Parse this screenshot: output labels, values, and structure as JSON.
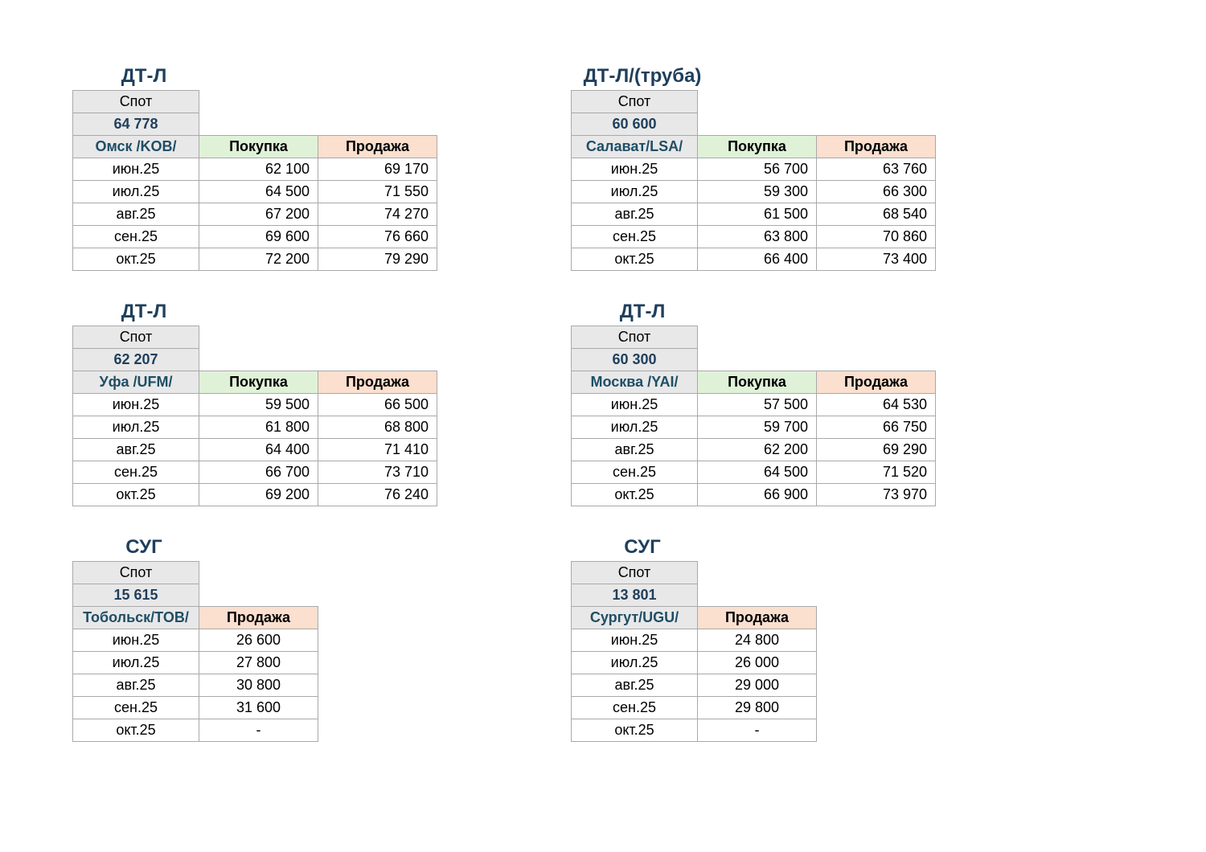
{
  "blocks": [
    {
      "title": "ДТ-Л",
      "spot_label": "Спот",
      "spot_value": "64 778",
      "location": "Омск /KOB/",
      "buy_header": "Покупка",
      "sell_header": "Продажа",
      "rows": [
        {
          "month": "июн.25",
          "buy": "62 100",
          "sell": "69 170"
        },
        {
          "month": "июл.25",
          "buy": "64 500",
          "sell": "71 550"
        },
        {
          "month": "авг.25",
          "buy": "67 200",
          "sell": "74 270"
        },
        {
          "month": "сен.25",
          "buy": "69 600",
          "sell": "76 660"
        },
        {
          "month": "окт.25",
          "buy": "72 200",
          "sell": "79 290"
        }
      ]
    },
    {
      "title": "ДТ-Л/(труба)",
      "spot_label": "Спот",
      "spot_value": "60 600",
      "location": "Салават/LSA/",
      "buy_header": "Покупка",
      "sell_header": "Продажа",
      "rows": [
        {
          "month": "июн.25",
          "buy": "56 700",
          "sell": "63 760"
        },
        {
          "month": "июл.25",
          "buy": "59 300",
          "sell": "66 300"
        },
        {
          "month": "авг.25",
          "buy": "61 500",
          "sell": "68 540"
        },
        {
          "month": "сен.25",
          "buy": "63 800",
          "sell": "70 860"
        },
        {
          "month": "окт.25",
          "buy": "66 400",
          "sell": "73 400"
        }
      ]
    },
    {
      "title": "ДТ-Л",
      "spot_label": "Спот",
      "spot_value": "62 207",
      "location": "Уфа /UFM/",
      "buy_header": "Покупка",
      "sell_header": "Продажа",
      "rows": [
        {
          "month": "июн.25",
          "buy": "59 500",
          "sell": "66 500"
        },
        {
          "month": "июл.25",
          "buy": "61 800",
          "sell": "68 800"
        },
        {
          "month": "авг.25",
          "buy": "64 400",
          "sell": "71 410"
        },
        {
          "month": "сен.25",
          "buy": "66 700",
          "sell": "73 710"
        },
        {
          "month": "окт.25",
          "buy": "69 200",
          "sell": "76 240"
        }
      ]
    },
    {
      "title": "ДТ-Л",
      "spot_label": "Спот",
      "spot_value": "60 300",
      "location": "Москва /YAI/",
      "buy_header": "Покупка",
      "sell_header": "Продажа",
      "rows": [
        {
          "month": "июн.25",
          "buy": "57 500",
          "sell": "64 530"
        },
        {
          "month": "июл.25",
          "buy": "59 700",
          "sell": "66 750"
        },
        {
          "month": "авг.25",
          "buy": "62 200",
          "sell": "69 290"
        },
        {
          "month": "сен.25",
          "buy": "64 500",
          "sell": "71 520"
        },
        {
          "month": "окт.25",
          "buy": "66 900",
          "sell": "73 970"
        }
      ]
    },
    {
      "title": "СУГ",
      "spot_label": "Спот",
      "spot_value": "15 615",
      "location": "Тобольск/TOB/",
      "sell_header": "Продажа",
      "rows": [
        {
          "month": "июн.25",
          "sell": "26 600"
        },
        {
          "month": "июл.25",
          "sell": "27 800"
        },
        {
          "month": "авг.25",
          "sell": "30 800"
        },
        {
          "month": "сен.25",
          "sell": "31 600"
        },
        {
          "month": "окт.25",
          "sell": "-"
        }
      ]
    },
    {
      "title": "СУГ",
      "spot_label": "Спот",
      "spot_value": "13 801",
      "location": "Сургут/UGU/",
      "sell_header": "Продажа",
      "rows": [
        {
          "month": "июн.25",
          "sell": "24 800"
        },
        {
          "month": "июл.25",
          "sell": "26 000"
        },
        {
          "month": "авг.25",
          "sell": "29 000"
        },
        {
          "month": "сен.25",
          "sell": "29 800"
        },
        {
          "month": "окт.25",
          "sell": "-"
        }
      ]
    }
  ]
}
